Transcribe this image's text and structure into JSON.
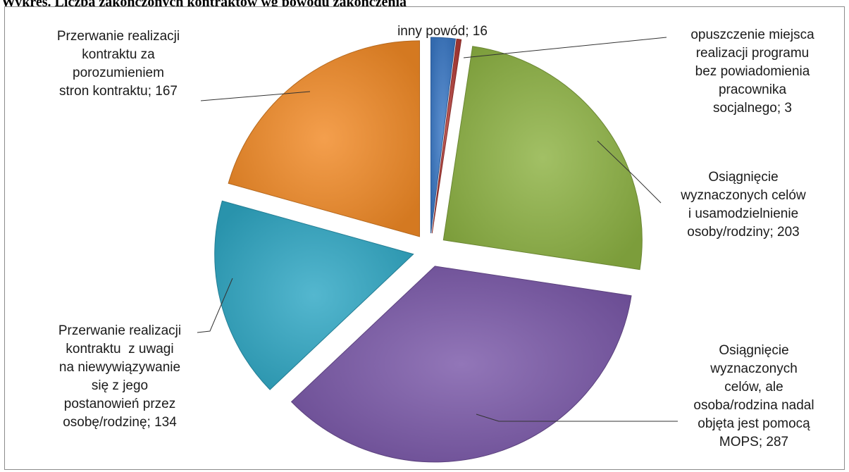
{
  "title": "Wykres. Liczba zakończonych kontraktów wg powodu zakończenia",
  "chart_data": {
    "type": "pie",
    "exploded": true,
    "slices": [
      {
        "lines": [
          "inny powód; 16"
        ],
        "label": "inny powód",
        "value": 16,
        "color": "#3a78c6"
      },
      {
        "lines": [
          "opuszczenie miejsca",
          "realizacji programu",
          "bez powiadomienia",
          "pracownika",
          "socjalnego; 3"
        ],
        "label": "opuszczenie miejsca realizacji programu bez powiadomienia pracownika socjalnego",
        "value": 3,
        "color": "#b13a35"
      },
      {
        "lines": [
          "Osiągnięcie",
          "wyznaczonych celów",
          "i usamodzielnienie",
          "osoby/rodziny; 203"
        ],
        "label": "Osiągnięcie wyznaczonych celów i usamodzielnienie osoby/rodziny",
        "value": 203,
        "color": "#8db243"
      },
      {
        "lines": [
          "Osiągnięcie",
          "wyznaczonych",
          "celów, ale",
          "osoba/rodzina nadal",
          "objęta jest pomocą",
          "MOPS; 287"
        ],
        "label": "Osiągnięcie wyznaczonych celów, ale osoba/rodzina nadal objęta jest pomocą MOPS",
        "value": 287,
        "color": "#7a58a8"
      },
      {
        "lines": [
          "Przerwanie realizacji",
          "kontraktu  z uwagi",
          "na niewywiązywanie",
          "się z jego",
          "postanowień przez",
          "osobę/rodzinę; 134"
        ],
        "label": "Przerwanie realizacji kontraktu z uwagi na niewywiązywanie się z jego postanowień przez osobę/rodzinę",
        "value": 134,
        "color": "#2fa7c4"
      },
      {
        "lines": [
          "Przerwanie realizacji",
          "kontraktu za",
          "porozumieniem",
          "stron kontraktu; 167"
        ],
        "label": "Przerwanie realizacji kontraktu za porozumieniem stron kontraktu",
        "value": 167,
        "color": "#f18a26"
      }
    ]
  }
}
